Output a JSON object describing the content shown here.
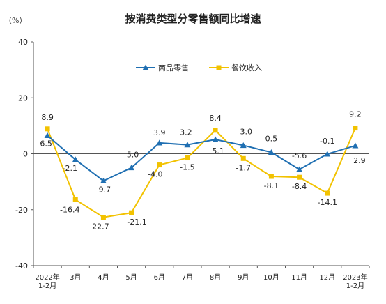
{
  "chart_data": {
    "type": "line",
    "title": "按消费类型分零售额同比增速",
    "unit_label": "（%）",
    "categories": [
      [
        "2022年",
        "1-2月"
      ],
      [
        "3月"
      ],
      [
        "4月"
      ],
      [
        "5月"
      ],
      [
        "6月"
      ],
      [
        "7月"
      ],
      [
        "8月"
      ],
      [
        "9月"
      ],
      [
        "10月"
      ],
      [
        "11月"
      ],
      [
        "12月"
      ],
      [
        "2023年",
        "1-2月"
      ]
    ],
    "ylim": [
      -40,
      40
    ],
    "yticks": [
      40,
      20,
      0,
      -20,
      -40
    ],
    "legend_position": "top-center",
    "series": [
      {
        "name": "商品零售",
        "color": "#1f6fb2",
        "marker": "triangle",
        "values": [
          6.5,
          -2.1,
          -9.7,
          -5.0,
          3.9,
          3.2,
          5.1,
          3.0,
          0.5,
          -5.6,
          -0.1,
          2.9
        ],
        "labels": [
          "6.5",
          "-2.1",
          "-9.7",
          "-5.0",
          "3.9",
          "3.2",
          "5.1",
          "3.0",
          "0.5",
          "-5.6",
          "-0.1",
          "2.9"
        ]
      },
      {
        "name": "餐饮收入",
        "color": "#f2c200",
        "marker": "square",
        "values": [
          8.9,
          -16.4,
          -22.7,
          -21.1,
          -4.0,
          -1.5,
          8.4,
          -1.7,
          -8.1,
          -8.4,
          -14.1,
          9.2
        ],
        "labels": [
          "8.9",
          "-16.4",
          "-22.7",
          "-21.1",
          "-4.0",
          "-1.5",
          "8.4",
          "-1.7",
          "-8.1",
          "-8.4",
          "-14.1",
          "9.2"
        ]
      }
    ]
  }
}
